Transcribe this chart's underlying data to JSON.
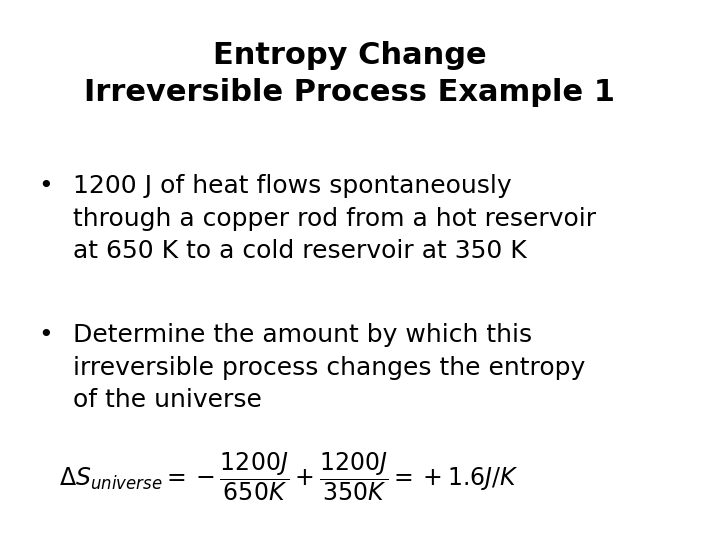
{
  "title_line1": "Entropy Change",
  "title_line2": "Irreversible Process Example 1",
  "bullet1_line1": "1200 J of heat flows spontaneously",
  "bullet1_line2": "through a copper rod from a hot reservoir",
  "bullet1_line3": "at 650 K to a cold reservoir at 350 K",
  "bullet2_line1": "Determine the amount by which this",
  "bullet2_line2": "irreversible process changes the entropy",
  "bullet2_line3": "of the universe",
  "bg_color": "#ffffff",
  "text_color": "#000000",
  "title_fontsize": 22,
  "body_fontsize": 18,
  "formula_fontsize": 17
}
